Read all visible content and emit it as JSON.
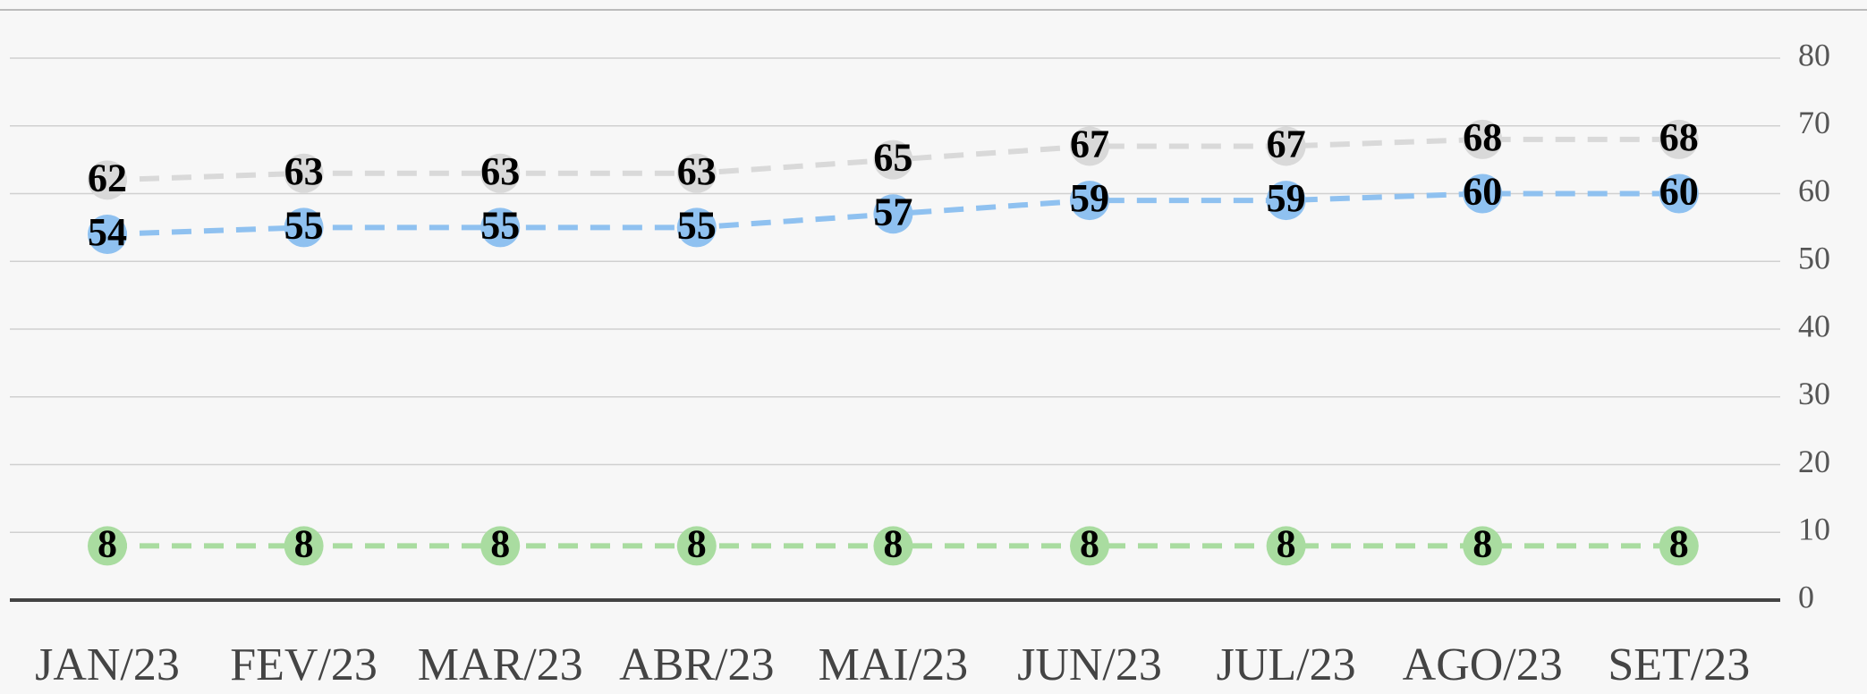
{
  "chart_data": {
    "type": "line",
    "categories": [
      "JAN/23",
      "FEV/23",
      "MAR/23",
      "ABR/23",
      "MAI/23",
      "JUN/23",
      "JUL/23",
      "AGO/23",
      "SET/23"
    ],
    "series": [
      {
        "color": "#d9d9d9",
        "values": [
          62,
          63,
          63,
          63,
          65,
          67,
          67,
          68,
          68
        ]
      },
      {
        "color": "#8fc1f0",
        "values": [
          54,
          55,
          55,
          55,
          57,
          59,
          59,
          60,
          60
        ]
      },
      {
        "color": "#a9dca0",
        "values": [
          8,
          8,
          8,
          8,
          8,
          8,
          8,
          8,
          8
        ]
      }
    ],
    "ylim": [
      0,
      80
    ],
    "yticks": [
      0,
      10,
      20,
      30,
      40,
      50,
      60,
      70,
      80
    ],
    "grid": true
  }
}
